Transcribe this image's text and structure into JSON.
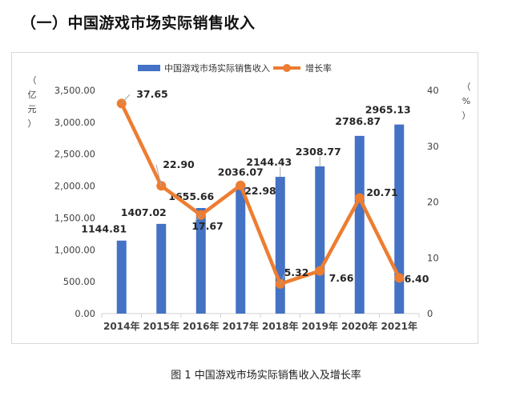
{
  "heading": "（一）中国游戏市场实际销售收入",
  "caption": "图 1 中国游戏市场实际销售收入及增长率",
  "legend": {
    "bar_label": "中国游戏市场实际销售收入",
    "line_label": "增长率"
  },
  "axes": {
    "left_unit": [
      "（",
      "亿",
      "元",
      "）"
    ],
    "right_unit": [
      "（",
      "%",
      "）"
    ]
  },
  "colors": {
    "bar": "#4472c4",
    "line": "#ed7d31",
    "axis_text": "#404040",
    "label_text": "#262626"
  },
  "chart_data": {
    "type": "bar+line",
    "title": "中国游戏市场实际销售收入及增长率",
    "categories": [
      "2014年",
      "2015年",
      "2016年",
      "2017年",
      "2018年",
      "2019年",
      "2020年",
      "2021年"
    ],
    "series": [
      {
        "name": "中国游戏市场实际销售收入",
        "type": "bar",
        "axis": "left",
        "values": [
          1144.81,
          1407.02,
          1655.66,
          2036.07,
          2144.43,
          2308.77,
          2786.87,
          2965.13
        ],
        "labels": [
          "1144.81",
          "1407.02",
          "1655.66",
          "2036.07",
          "2144.43",
          "2308.77",
          "2786.87",
          "2965.13"
        ]
      },
      {
        "name": "增长率",
        "type": "line",
        "axis": "right",
        "values": [
          37.65,
          22.9,
          17.67,
          22.98,
          5.32,
          7.66,
          20.71,
          6.4
        ],
        "labels": [
          "37.65",
          "22.90",
          "17.67",
          "22.98",
          "5.32",
          "7.66",
          "20.71",
          "6.40"
        ]
      }
    ],
    "ylabel_left": "（亿元）",
    "ylabel_right": "（%）",
    "ylim_left": [
      0,
      3500
    ],
    "ylim_right": [
      0,
      40
    ],
    "yticks_left": [
      "0.00",
      "500.00",
      "1,000.00",
      "1,500.00",
      "2,000.00",
      "2,500.00",
      "3,000.00",
      "3,500.00"
    ],
    "yticks_right": [
      "0",
      "10",
      "20",
      "30",
      "40"
    ],
    "grid": false,
    "legend_position": "top"
  }
}
